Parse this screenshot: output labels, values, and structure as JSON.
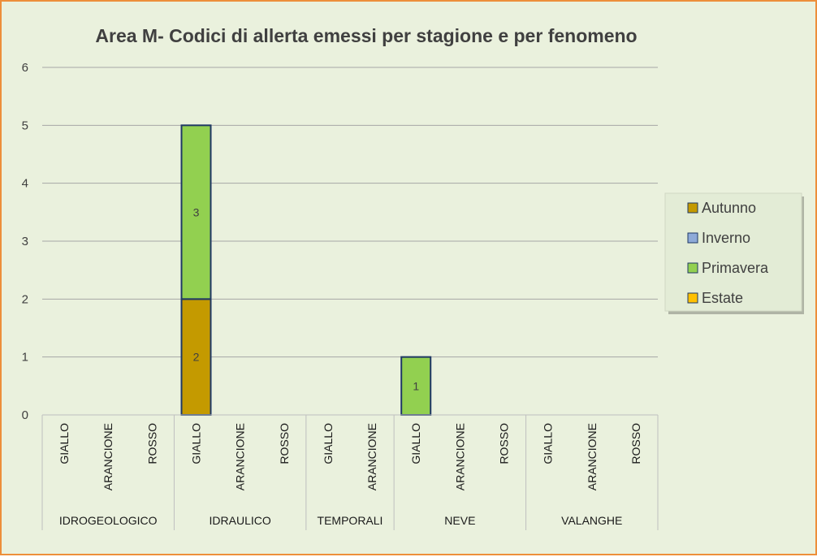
{
  "chart_data": {
    "type": "bar",
    "stacked": true,
    "title": "Area M- Codici di allerta emessi per stagione e per fenomeno",
    "xlabel": "",
    "ylabel": "",
    "ylim": [
      0,
      6
    ],
    "yticks": [
      "0",
      "1",
      "2",
      "3",
      "4",
      "5",
      "6"
    ],
    "grid": true,
    "legend_position": "right",
    "groups": [
      {
        "name": "IDROGEOLOGICO",
        "categories": [
          "GIALLO",
          "ARANCIONE",
          "ROSSO"
        ]
      },
      {
        "name": "IDRAULICO",
        "categories": [
          "GIALLO",
          "ARANCIONE",
          "ROSSO"
        ]
      },
      {
        "name": "TEMPORALI",
        "categories": [
          "GIALLO",
          "ARANCIONE"
        ]
      },
      {
        "name": "NEVE",
        "categories": [
          "GIALLO",
          "ARANCIONE",
          "ROSSO"
        ]
      },
      {
        "name": "VALANGHE",
        "categories": [
          "GIALLO",
          "ARANCIONE",
          "ROSSO"
        ]
      }
    ],
    "categories": [
      "GIALLO",
      "ARANCIONE",
      "ROSSO",
      "GIALLO",
      "ARANCIONE",
      "ROSSO",
      "GIALLO",
      "ARANCIONE",
      "GIALLO",
      "ARANCIONE",
      "ROSSO",
      "GIALLO",
      "ARANCIONE",
      "ROSSO"
    ],
    "series": [
      {
        "name": "Autunno",
        "color": "#c49a00",
        "values": [
          0,
          0,
          0,
          2,
          0,
          0,
          0,
          0,
          0,
          0,
          0,
          0,
          0,
          0
        ]
      },
      {
        "name": "Inverno",
        "color": "#8eaad8",
        "values": [
          0,
          0,
          0,
          0,
          0,
          0,
          0,
          0,
          0,
          0,
          0,
          0,
          0,
          0
        ]
      },
      {
        "name": "Primavera",
        "color": "#92d050",
        "values": [
          0,
          0,
          0,
          3,
          0,
          0,
          0,
          0,
          1,
          0,
          0,
          0,
          0,
          0
        ]
      },
      {
        "name": "Estate",
        "color": "#ffc000",
        "values": [
          0,
          0,
          0,
          0,
          0,
          0,
          0,
          0,
          0,
          0,
          0,
          0,
          0,
          0
        ]
      }
    ]
  },
  "colors": {
    "background": "#eaf1dd",
    "border": "#ed8f3a",
    "bar_outline": "#1f3864",
    "gridline": "#a6a6a6"
  }
}
